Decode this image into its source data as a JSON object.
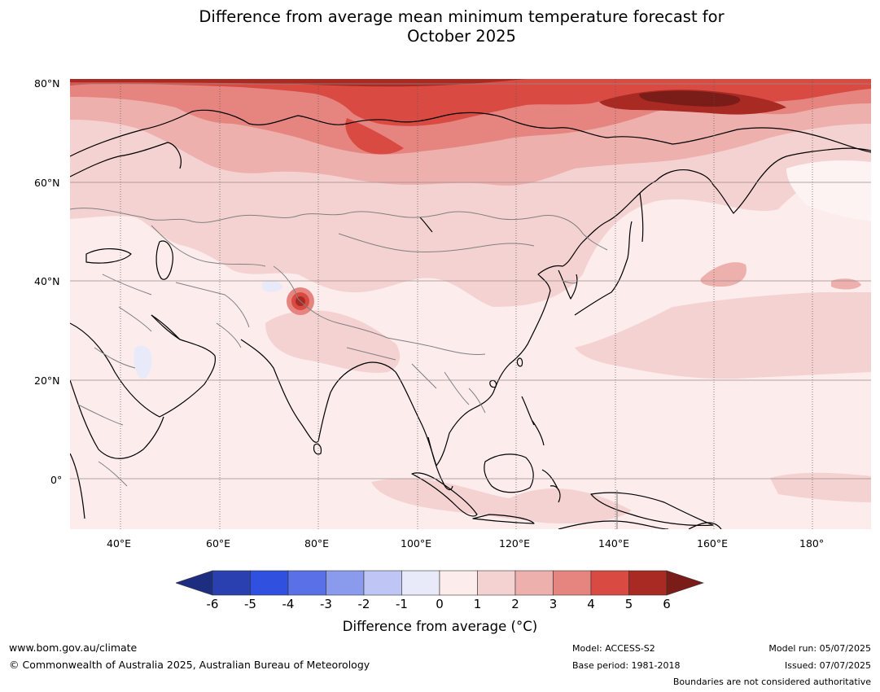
{
  "title": {
    "line1": "Difference from average mean minimum temperature forecast for",
    "line2": "October 2025"
  },
  "axes": {
    "y_ticks": [
      "80°N",
      "60°N",
      "40°N",
      "20°N",
      "0°"
    ],
    "x_ticks": [
      "40°E",
      "60°E",
      "80°E",
      "100°E",
      "120°E",
      "140°E",
      "160°E",
      "180°"
    ],
    "lon_range": [
      30,
      191
    ],
    "lat_range": [
      -10,
      81
    ]
  },
  "colorbar": {
    "ticks": [
      "-6",
      "-5",
      "-4",
      "-3",
      "-2",
      "-1",
      "0",
      "1",
      "2",
      "3",
      "4",
      "5",
      "6"
    ],
    "colors": [
      "#1d2e80",
      "#2a3fb0",
      "#3050e0",
      "#5a70e6",
      "#8a9aed",
      "#bfc6f5",
      "#e8eaf9",
      "#fcecec",
      "#f5d2d2",
      "#edb0ad",
      "#e68580",
      "#d94a42",
      "#a82a22",
      "#7a1c18"
    ],
    "label": "Difference from average (°C)"
  },
  "footer": {
    "url": "www.bom.gov.au/climate",
    "copyright": "© Commonwealth of Australia 2025, Australian Bureau of Meteorology",
    "model": "Model: ACCESS-S2",
    "base_period": "Base period: 1981-2018",
    "model_run": "Model run: 05/07/2025",
    "issued": "Issued: 07/07/2025",
    "disclaimer": "Boundaries are not considered authoritative"
  },
  "layers": {
    "coastline_color": "#000000",
    "borders_color": "#808080",
    "gridline_color": "#555555"
  }
}
